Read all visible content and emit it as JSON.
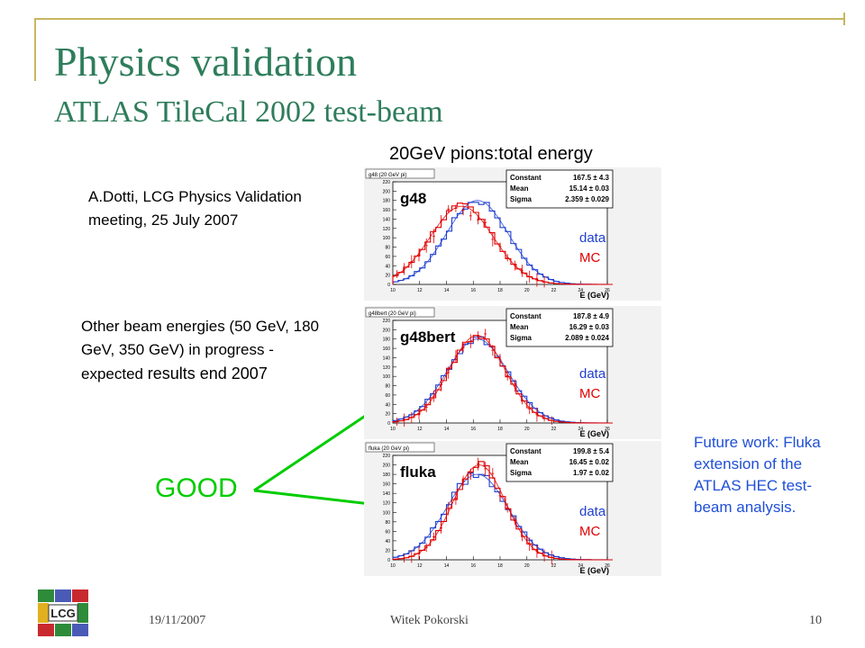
{
  "slide": {
    "title": "Physics validation",
    "subtitle": "ATLAS TileCal 2002 test-beam",
    "plot_heading": "20GeV pions:total energy",
    "reference_note": "A.Dotti, LCG Physics Validation meeting, 25 July 2007",
    "other_energies_part1": "Other beam energies (50 GeV, 180 GeV, 350 GeV) in progress -expected",
    "other_energies_part2": "results end 2007",
    "good_label": "GOOD",
    "future_work": "Future work: Fluka extension of the ATLAS HEC test-beam analysis.",
    "legend_data": "data",
    "legend_mc": "MC"
  },
  "footer": {
    "date": "19/11/2007",
    "author": "Witek Pokorski",
    "page": "10",
    "logo_text": "LCG"
  },
  "colors": {
    "title": "#2e7d5b",
    "data": "#1f3fd0",
    "mc": "#e00000",
    "good": "#00cc00",
    "future": "#1f4fd6"
  },
  "chart_data": [
    {
      "type": "line",
      "frame_title": "g48 (20 GeV pi)",
      "label": "g48",
      "xlabel": "E (GeV)",
      "xlim": [
        10,
        26
      ],
      "ylim": [
        0,
        220
      ],
      "x_ticks": [
        10,
        12,
        14,
        16,
        18,
        20,
        22,
        24,
        26
      ],
      "y_ticks": [
        0,
        20,
        40,
        60,
        80,
        100,
        120,
        140,
        160,
        180,
        200,
        220
      ],
      "stats": [
        {
          "name": "Constant",
          "value": "167.5 ± 4.3"
        },
        {
          "name": "Mean",
          "value": "15.14 ± 0.03"
        },
        {
          "name": "Sigma",
          "value": "2.359 ± 0.029"
        }
      ],
      "series": [
        {
          "name": "data",
          "color": "#1f3fd0",
          "constant": 180,
          "mean": 16.3,
          "sigma": 2.3
        },
        {
          "name": "MC",
          "color": "#e00000",
          "constant": 167.5,
          "mean": 15.14,
          "sigma": 2.359
        }
      ]
    },
    {
      "type": "line",
      "frame_title": "g48bert (20 GeV pi)",
      "label": "g48bert",
      "xlabel": "E (GeV)",
      "xlim": [
        10,
        26
      ],
      "ylim": [
        0,
        220
      ],
      "x_ticks": [
        10,
        12,
        14,
        16,
        18,
        20,
        22,
        24,
        26
      ],
      "y_ticks": [
        0,
        20,
        40,
        60,
        80,
        100,
        120,
        140,
        160,
        180,
        200,
        220
      ],
      "stats": [
        {
          "name": "Constant",
          "value": "187.8 ± 4.9"
        },
        {
          "name": "Mean",
          "value": "16.29 ± 0.03"
        },
        {
          "name": "Sigma",
          "value": "2.089 ± 0.024"
        }
      ],
      "series": [
        {
          "name": "data",
          "color": "#1f3fd0",
          "constant": 180,
          "mean": 16.3,
          "sigma": 2.3
        },
        {
          "name": "MC",
          "color": "#e00000",
          "constant": 187.8,
          "mean": 16.29,
          "sigma": 2.089
        }
      ]
    },
    {
      "type": "line",
      "frame_title": "fluka (20 GeV pi)",
      "label": "fluka",
      "xlabel": "E (GeV)",
      "xlim": [
        10,
        26
      ],
      "ylim": [
        0,
        220
      ],
      "x_ticks": [
        10,
        12,
        14,
        16,
        18,
        20,
        22,
        24,
        26
      ],
      "y_ticks": [
        0,
        20,
        40,
        60,
        80,
        100,
        120,
        140,
        160,
        180,
        200,
        220
      ],
      "stats": [
        {
          "name": "Constant",
          "value": "199.8 ± 5.4"
        },
        {
          "name": "Mean",
          "value": "16.45 ± 0.02"
        },
        {
          "name": "Sigma",
          "value": "1.97 ± 0.02"
        }
      ],
      "series": [
        {
          "name": "data",
          "color": "#1f3fd0",
          "constant": 180,
          "mean": 16.3,
          "sigma": 2.3
        },
        {
          "name": "MC",
          "color": "#e00000",
          "constant": 199.8,
          "mean": 16.45,
          "sigma": 1.97
        }
      ]
    }
  ]
}
